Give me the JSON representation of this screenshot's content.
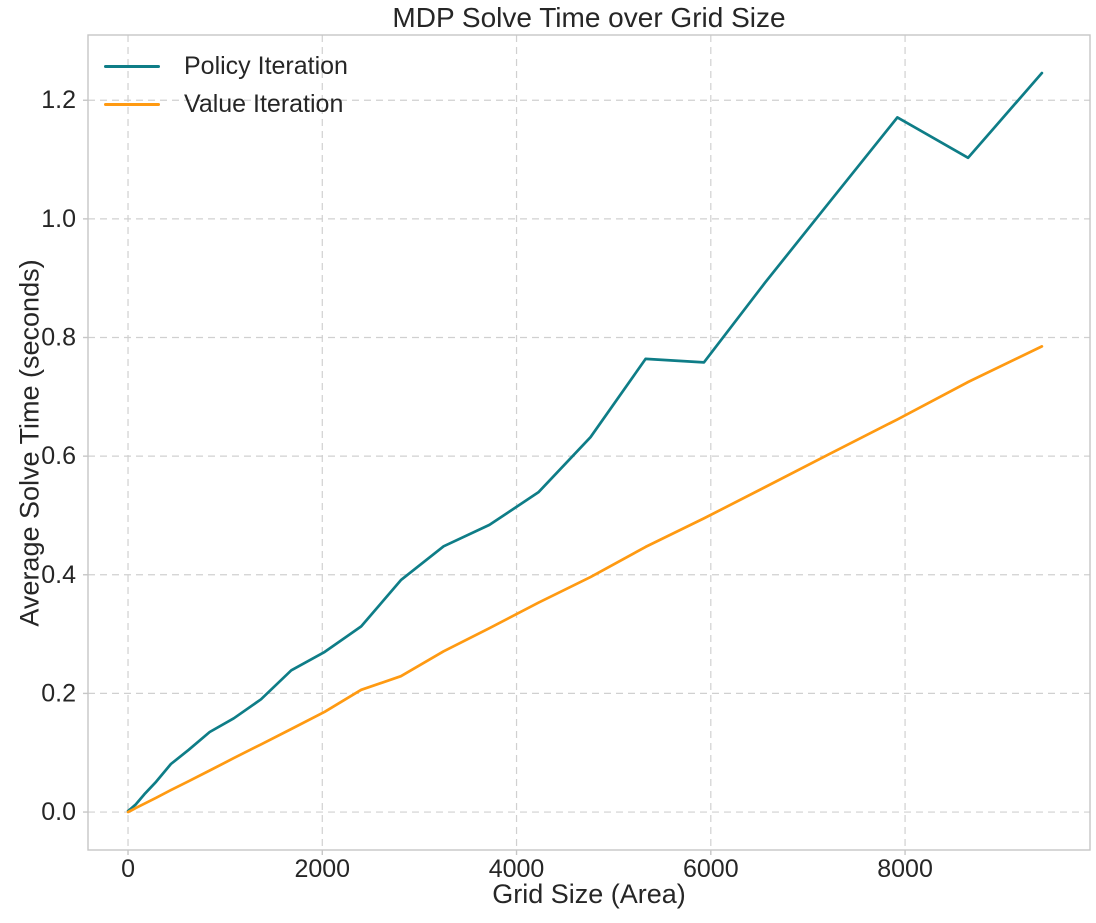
{
  "chart_data": {
    "type": "line",
    "title": "MDP Solve Time over Grid Size",
    "xlabel": "Grid Size (Area)",
    "ylabel": "Average Solve Time (seconds)",
    "legend_position": "upper-left",
    "grid": "dashed",
    "xlim": [
      -412,
      9904
    ],
    "ylim": [
      -0.064,
      1.31
    ],
    "x_ticks": [
      0,
      2000,
      4000,
      6000,
      8000
    ],
    "y_ticks": [
      0.0,
      0.2,
      0.4,
      0.6,
      0.8,
      1.0,
      1.2
    ],
    "x": [
      1,
      25,
      81,
      169,
      289,
      441,
      625,
      841,
      1089,
      1369,
      1681,
      2025,
      2401,
      2809,
      3249,
      3721,
      4225,
      4761,
      5329,
      5929,
      6561,
      7225,
      7921,
      8649,
      9409
    ],
    "series": [
      {
        "name": "Policy Iteration",
        "color": "#0e7d87",
        "values": [
          0.002,
          0.005,
          0.013,
          0.03,
          0.051,
          0.081,
          0.105,
          0.135,
          0.158,
          0.19,
          0.239,
          0.27,
          0.313,
          0.391,
          0.448,
          0.484,
          0.539,
          0.632,
          0.764,
          0.758,
          0.893,
          1.029,
          1.171,
          1.103,
          1.246
        ]
      },
      {
        "name": "Value Iteration",
        "color": "#ff9a12",
        "values": [
          0.0,
          0.002,
          0.007,
          0.014,
          0.024,
          0.037,
          0.052,
          0.07,
          0.091,
          0.114,
          0.14,
          0.169,
          0.206,
          0.229,
          0.271,
          0.31,
          0.353,
          0.396,
          0.447,
          0.495,
          0.548,
          0.604,
          0.662,
          0.725,
          0.785
        ]
      }
    ],
    "colors": {
      "background": "#ffffff",
      "grid": "#d0d0d0",
      "spine": "#c6c6c6",
      "text": "#262626"
    }
  }
}
